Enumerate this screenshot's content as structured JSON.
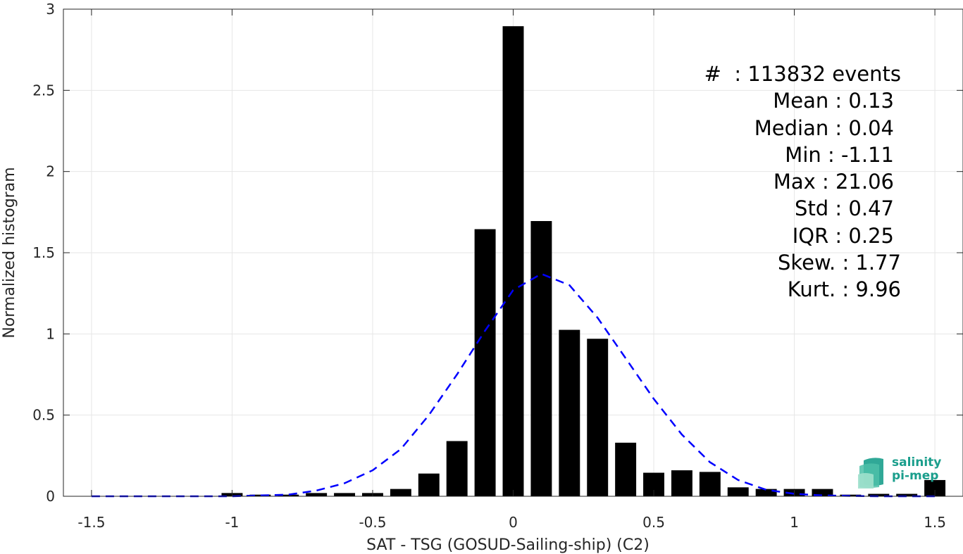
{
  "chart_data": {
    "type": "bar",
    "xlabel": "SAT - TSG (GOSUD-Sailing-ship) (C2)",
    "ylabel": "Normalized histogram",
    "xlim": [
      -1.6,
      1.6
    ],
    "ylim": [
      0,
      3
    ],
    "xticks": [
      -1.5,
      -1,
      -0.5,
      0,
      0.5,
      1,
      1.5
    ],
    "xtick_labels": [
      "-1.5",
      "-1",
      "-0.5",
      "0",
      "0.5",
      "1",
      "1.5"
    ],
    "yticks": [
      0,
      0.5,
      1,
      1.5,
      2,
      2.5,
      3
    ],
    "ytick_labels": [
      "0",
      "0.5",
      "1",
      "1.5",
      "2",
      "2.5",
      "3"
    ],
    "grid": true,
    "bar_width": 0.075,
    "bars": {
      "x": [
        -1.0,
        -0.9,
        -0.8,
        -0.7,
        -0.6,
        -0.5,
        -0.4,
        -0.3,
        -0.2,
        -0.1,
        0.0,
        0.1,
        0.2,
        0.3,
        0.4,
        0.5,
        0.6,
        0.7,
        0.8,
        0.9,
        1.0,
        1.1,
        1.2,
        1.3,
        1.4,
        1.5
      ],
      "values": [
        0.02,
        0.01,
        0.01,
        0.02,
        0.02,
        0.02,
        0.045,
        0.14,
        0.34,
        1.645,
        2.895,
        1.695,
        1.025,
        0.97,
        0.33,
        0.145,
        0.16,
        0.15,
        0.055,
        0.045,
        0.045,
        0.045,
        0.01,
        0.015,
        0.015,
        0.1
      ]
    },
    "fit_curve": {
      "style": "dashed",
      "color": "#0000ff",
      "x": [
        -1.5,
        -1.4,
        -1.3,
        -1.2,
        -1.1,
        -1.0,
        -0.9,
        -0.8,
        -0.7,
        -0.6,
        -0.5,
        -0.4,
        -0.3,
        -0.2,
        -0.1,
        0.0,
        0.1,
        0.2,
        0.3,
        0.4,
        0.5,
        0.6,
        0.7,
        0.8,
        0.9,
        1.0,
        1.1,
        1.2,
        1.3,
        1.4,
        1.5
      ],
      "y": [
        0.0,
        0.0,
        0.0,
        0.0,
        0.0,
        0.0,
        0.005,
        0.01,
        0.035,
        0.08,
        0.16,
        0.29,
        0.5,
        0.75,
        1.02,
        1.27,
        1.37,
        1.3,
        1.1,
        0.85,
        0.6,
        0.38,
        0.21,
        0.1,
        0.04,
        0.015,
        0.005,
        0.002,
        0.0,
        0.0,
        0.0
      ]
    },
    "bar_color": "#000000",
    "stats": {
      "events": "#  : 113832 events",
      "mean": "Mean : 0.13",
      "median": "Median : 0.04",
      "min": "Min : -1.11",
      "max": "Max : 21.06",
      "std": "Std : 0.47",
      "iqr": "IQR : 0.25",
      "skew": "Skew. : 1.77",
      "kurt": "Kurt. : 9.96"
    }
  },
  "logo": {
    "line1": "salinity",
    "line2": "pi-mep",
    "color": "#1a9e8c"
  }
}
